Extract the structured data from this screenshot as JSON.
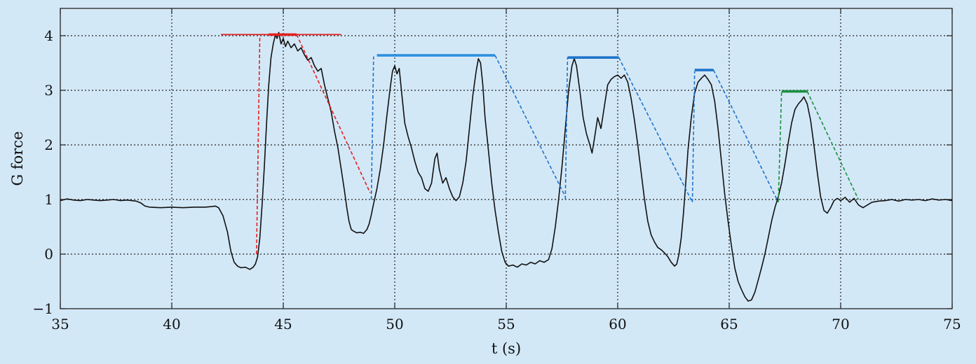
{
  "chart_data": {
    "type": "line",
    "xlabel": "t (s)",
    "ylabel": "G force",
    "xlim": [
      35,
      75
    ],
    "ylim": [
      -1,
      4.5
    ],
    "xticks": [
      35,
      40,
      45,
      50,
      55,
      60,
      65,
      70,
      75
    ],
    "yticks": [
      -1,
      0,
      1,
      2,
      3,
      4
    ],
    "xtick_labels": [
      "35",
      "40",
      "45",
      "50",
      "55",
      "60",
      "65",
      "70",
      "75"
    ],
    "ytick_labels": [
      "−1",
      "0",
      "1",
      "2",
      "3",
      "4"
    ],
    "grid": true,
    "grid_style": "dotted",
    "colors": {
      "background": "#d3e8f7",
      "measured": "#111111",
      "red": "#e41f1f",
      "blue": "#1f73c9",
      "light_blue": "#2e8fe0",
      "green": "#1a8f3c"
    },
    "series": [
      {
        "color_key": "measured",
        "style": "solid",
        "points": [
          [
            35.0,
            0.98
          ],
          [
            35.3,
            1.01
          ],
          [
            35.6,
            0.99
          ],
          [
            35.9,
            0.98
          ],
          [
            36.2,
            1.0
          ],
          [
            36.5,
            0.99
          ],
          [
            36.8,
            0.98
          ],
          [
            37.1,
            0.99
          ],
          [
            37.4,
            1.0
          ],
          [
            37.7,
            0.98
          ],
          [
            38.0,
            0.99
          ],
          [
            38.4,
            0.97
          ],
          [
            38.6,
            0.94
          ],
          [
            38.8,
            0.88
          ],
          [
            39.0,
            0.86
          ],
          [
            39.5,
            0.85
          ],
          [
            40.0,
            0.86
          ],
          [
            40.5,
            0.85
          ],
          [
            41.0,
            0.86
          ],
          [
            41.5,
            0.86
          ],
          [
            41.8,
            0.87
          ],
          [
            41.95,
            0.88
          ],
          [
            42.1,
            0.85
          ],
          [
            42.3,
            0.7
          ],
          [
            42.5,
            0.4
          ],
          [
            42.65,
            0.05
          ],
          [
            42.8,
            -0.15
          ],
          [
            42.95,
            -0.22
          ],
          [
            43.1,
            -0.25
          ],
          [
            43.3,
            -0.24
          ],
          [
            43.5,
            -0.28
          ],
          [
            43.65,
            -0.24
          ],
          [
            43.75,
            -0.18
          ],
          [
            43.85,
            -0.05
          ],
          [
            43.95,
            0.3
          ],
          [
            44.05,
            0.9
          ],
          [
            44.15,
            1.6
          ],
          [
            44.25,
            2.4
          ],
          [
            44.35,
            3.1
          ],
          [
            44.45,
            3.6
          ],
          [
            44.55,
            3.85
          ],
          [
            44.65,
            4.02
          ],
          [
            44.72,
            3.95
          ],
          [
            44.8,
            4.06
          ],
          [
            44.9,
            3.85
          ],
          [
            45.0,
            3.95
          ],
          [
            45.1,
            3.8
          ],
          [
            45.2,
            3.9
          ],
          [
            45.35,
            3.78
          ],
          [
            45.5,
            3.85
          ],
          [
            45.65,
            3.72
          ],
          [
            45.8,
            3.78
          ],
          [
            45.95,
            3.65
          ],
          [
            46.1,
            3.55
          ],
          [
            46.25,
            3.6
          ],
          [
            46.4,
            3.45
          ],
          [
            46.55,
            3.35
          ],
          [
            46.7,
            3.4
          ],
          [
            46.85,
            3.1
          ],
          [
            47.0,
            2.85
          ],
          [
            47.15,
            2.6
          ],
          [
            47.3,
            2.25
          ],
          [
            47.45,
            1.95
          ],
          [
            47.6,
            1.55
          ],
          [
            47.75,
            1.15
          ],
          [
            47.85,
            0.85
          ],
          [
            47.95,
            0.6
          ],
          [
            48.05,
            0.45
          ],
          [
            48.15,
            0.42
          ],
          [
            48.3,
            0.39
          ],
          [
            48.45,
            0.4
          ],
          [
            48.6,
            0.38
          ],
          [
            48.75,
            0.45
          ],
          [
            48.85,
            0.55
          ],
          [
            48.95,
            0.72
          ],
          [
            49.05,
            0.92
          ],
          [
            49.2,
            1.2
          ],
          [
            49.35,
            1.55
          ],
          [
            49.5,
            2.0
          ],
          [
            49.65,
            2.55
          ],
          [
            49.8,
            3.05
          ],
          [
            49.9,
            3.35
          ],
          [
            50.0,
            3.45
          ],
          [
            50.1,
            3.3
          ],
          [
            50.2,
            3.4
          ],
          [
            50.3,
            3.0
          ],
          [
            50.45,
            2.4
          ],
          [
            50.6,
            2.15
          ],
          [
            50.75,
            1.95
          ],
          [
            50.9,
            1.7
          ],
          [
            51.05,
            1.5
          ],
          [
            51.2,
            1.4
          ],
          [
            51.35,
            1.2
          ],
          [
            51.5,
            1.15
          ],
          [
            51.65,
            1.3
          ],
          [
            51.8,
            1.75
          ],
          [
            51.9,
            1.85
          ],
          [
            52.0,
            1.55
          ],
          [
            52.15,
            1.3
          ],
          [
            52.3,
            1.4
          ],
          [
            52.45,
            1.2
          ],
          [
            52.6,
            1.05
          ],
          [
            52.75,
            0.98
          ],
          [
            52.9,
            1.05
          ],
          [
            53.05,
            1.3
          ],
          [
            53.2,
            1.7
          ],
          [
            53.35,
            2.3
          ],
          [
            53.5,
            2.9
          ],
          [
            53.65,
            3.35
          ],
          [
            53.75,
            3.58
          ],
          [
            53.85,
            3.5
          ],
          [
            53.95,
            3.1
          ],
          [
            54.05,
            2.5
          ],
          [
            54.2,
            1.9
          ],
          [
            54.35,
            1.3
          ],
          [
            54.5,
            0.8
          ],
          [
            54.65,
            0.4
          ],
          [
            54.8,
            0.05
          ],
          [
            54.95,
            -0.15
          ],
          [
            55.1,
            -0.22
          ],
          [
            55.3,
            -0.2
          ],
          [
            55.5,
            -0.24
          ],
          [
            55.7,
            -0.18
          ],
          [
            55.9,
            -0.2
          ],
          [
            56.1,
            -0.15
          ],
          [
            56.3,
            -0.18
          ],
          [
            56.5,
            -0.12
          ],
          [
            56.7,
            -0.15
          ],
          [
            56.9,
            -0.1
          ],
          [
            57.05,
            0.1
          ],
          [
            57.2,
            0.5
          ],
          [
            57.35,
            1.0
          ],
          [
            57.5,
            1.6
          ],
          [
            57.65,
            2.3
          ],
          [
            57.8,
            3.0
          ],
          [
            57.95,
            3.45
          ],
          [
            58.05,
            3.58
          ],
          [
            58.15,
            3.45
          ],
          [
            58.3,
            3.0
          ],
          [
            58.45,
            2.5
          ],
          [
            58.6,
            2.2
          ],
          [
            58.75,
            2.0
          ],
          [
            58.85,
            1.85
          ],
          [
            58.95,
            2.1
          ],
          [
            59.1,
            2.5
          ],
          [
            59.25,
            2.3
          ],
          [
            59.4,
            2.7
          ],
          [
            59.55,
            3.1
          ],
          [
            59.7,
            3.2
          ],
          [
            59.85,
            3.25
          ],
          [
            60.0,
            3.28
          ],
          [
            60.15,
            3.22
          ],
          [
            60.3,
            3.28
          ],
          [
            60.45,
            3.15
          ],
          [
            60.6,
            2.85
          ],
          [
            60.75,
            2.45
          ],
          [
            60.9,
            2.0
          ],
          [
            61.05,
            1.5
          ],
          [
            61.2,
            1.0
          ],
          [
            61.35,
            0.6
          ],
          [
            61.5,
            0.35
          ],
          [
            61.65,
            0.22
          ],
          [
            61.8,
            0.12
          ],
          [
            61.95,
            0.08
          ],
          [
            62.1,
            0.02
          ],
          [
            62.25,
            -0.05
          ],
          [
            62.4,
            -0.15
          ],
          [
            62.55,
            -0.22
          ],
          [
            62.65,
            -0.18
          ],
          [
            62.75,
            0.0
          ],
          [
            62.85,
            0.3
          ],
          [
            62.95,
            0.75
          ],
          [
            63.05,
            1.3
          ],
          [
            63.15,
            1.9
          ],
          [
            63.3,
            2.5
          ],
          [
            63.45,
            2.95
          ],
          [
            63.6,
            3.15
          ],
          [
            63.75,
            3.22
          ],
          [
            63.9,
            3.28
          ],
          [
            64.05,
            3.2
          ],
          [
            64.2,
            3.1
          ],
          [
            64.35,
            2.8
          ],
          [
            64.5,
            2.3
          ],
          [
            64.65,
            1.7
          ],
          [
            64.8,
            1.1
          ],
          [
            64.95,
            0.6
          ],
          [
            65.1,
            0.15
          ],
          [
            65.25,
            -0.25
          ],
          [
            65.4,
            -0.5
          ],
          [
            65.55,
            -0.65
          ],
          [
            65.7,
            -0.78
          ],
          [
            65.85,
            -0.86
          ],
          [
            66.0,
            -0.84
          ],
          [
            66.15,
            -0.7
          ],
          [
            66.3,
            -0.48
          ],
          [
            66.45,
            -0.25
          ],
          [
            66.6,
            0.0
          ],
          [
            66.75,
            0.3
          ],
          [
            66.9,
            0.6
          ],
          [
            67.05,
            0.85
          ],
          [
            67.2,
            1.05
          ],
          [
            67.35,
            1.3
          ],
          [
            67.5,
            1.65
          ],
          [
            67.65,
            2.05
          ],
          [
            67.8,
            2.4
          ],
          [
            67.95,
            2.65
          ],
          [
            68.1,
            2.75
          ],
          [
            68.25,
            2.82
          ],
          [
            68.35,
            2.88
          ],
          [
            68.5,
            2.75
          ],
          [
            68.65,
            2.45
          ],
          [
            68.8,
            2.0
          ],
          [
            68.95,
            1.5
          ],
          [
            69.1,
            1.05
          ],
          [
            69.25,
            0.8
          ],
          [
            69.4,
            0.75
          ],
          [
            69.55,
            0.85
          ],
          [
            69.7,
            0.98
          ],
          [
            69.85,
            1.02
          ],
          [
            70.0,
            0.98
          ],
          [
            70.2,
            1.04
          ],
          [
            70.4,
            0.95
          ],
          [
            70.6,
            1.02
          ],
          [
            70.8,
            0.9
          ],
          [
            71.0,
            0.85
          ],
          [
            71.2,
            0.9
          ],
          [
            71.4,
            0.95
          ],
          [
            71.7,
            0.97
          ],
          [
            72.0,
            0.98
          ],
          [
            72.3,
            1.0
          ],
          [
            72.6,
            0.97
          ],
          [
            72.9,
            1.0
          ],
          [
            73.2,
            0.99
          ],
          [
            73.5,
            1.0
          ],
          [
            73.8,
            0.98
          ],
          [
            74.1,
            1.01
          ],
          [
            74.4,
            0.99
          ],
          [
            74.7,
            1.0
          ],
          [
            75.0,
            0.98
          ]
        ]
      },
      {
        "color_key": "red",
        "style": "solid",
        "points": [
          [
            42.2,
            4.02
          ],
          [
            47.6,
            4.02
          ]
        ]
      },
      {
        "color_key": "red",
        "style": "thick",
        "points": [
          [
            44.35,
            4.02
          ],
          [
            45.6,
            4.02
          ]
        ]
      },
      {
        "color_key": "red",
        "style": "dashed",
        "points": [
          [
            43.8,
            0.0
          ],
          [
            43.95,
            4.0
          ]
        ]
      },
      {
        "color_key": "red",
        "style": "dashed",
        "points": [
          [
            45.6,
            4.02
          ],
          [
            48.9,
            1.12
          ]
        ]
      },
      {
        "color_key": "blue",
        "style": "dashed",
        "points": [
          [
            48.95,
            1.0
          ],
          [
            49.05,
            3.62
          ]
        ]
      },
      {
        "color_key": "light_blue",
        "style": "thick",
        "points": [
          [
            49.2,
            3.64
          ],
          [
            54.5,
            3.64
          ]
        ]
      },
      {
        "color_key": "blue",
        "style": "dashed",
        "points": [
          [
            54.5,
            3.64
          ],
          [
            57.65,
            1.05
          ]
        ]
      },
      {
        "color_key": "blue",
        "style": "dashed",
        "points": [
          [
            57.65,
            1.0
          ],
          [
            57.75,
            3.6
          ]
        ]
      },
      {
        "color_key": "blue",
        "style": "thick",
        "points": [
          [
            57.75,
            3.6
          ],
          [
            60.05,
            3.6
          ]
        ]
      },
      {
        "color_key": "blue",
        "style": "dashed",
        "points": [
          [
            60.05,
            3.6
          ],
          [
            63.35,
            0.95
          ]
        ]
      },
      {
        "color_key": "blue",
        "style": "dashed",
        "points": [
          [
            63.35,
            0.95
          ],
          [
            63.45,
            3.35
          ]
        ]
      },
      {
        "color_key": "blue",
        "style": "thick",
        "points": [
          [
            63.45,
            3.37
          ],
          [
            64.3,
            3.37
          ]
        ]
      },
      {
        "color_key": "blue",
        "style": "dashed",
        "points": [
          [
            64.3,
            3.37
          ],
          [
            67.2,
            0.95
          ]
        ]
      },
      {
        "color_key": "green",
        "style": "dashed",
        "points": [
          [
            67.2,
            0.95
          ],
          [
            67.35,
            2.98
          ]
        ]
      },
      {
        "color_key": "green",
        "style": "thick",
        "points": [
          [
            67.35,
            2.98
          ],
          [
            68.5,
            2.98
          ]
        ]
      },
      {
        "color_key": "green",
        "style": "dashed",
        "points": [
          [
            68.5,
            2.98
          ],
          [
            70.8,
            1.0
          ]
        ]
      }
    ]
  }
}
